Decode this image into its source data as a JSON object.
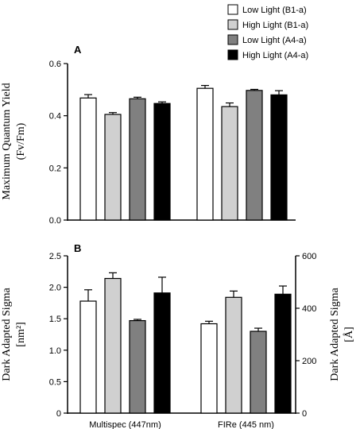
{
  "legend": [
    {
      "label": "Low Light (B1-a)",
      "color": "#ffffff"
    },
    {
      "label": "High Light (B1-a)",
      "color": "#d0d0d0"
    },
    {
      "label": "Low Light (A4-a)",
      "color": "#808080"
    },
    {
      "label": "High Light (A4-a)",
      "color": "#000000"
    }
  ],
  "chart_data": [
    {
      "type": "bar",
      "panel_label": "A",
      "ylabel_line1": "Maximum Quantum Yield",
      "ylabel_line2": "(Fv/Fm)",
      "ylim": [
        0,
        0.6
      ],
      "yticks": [
        "0.0",
        "0.2",
        "0.4",
        "0.6"
      ],
      "groups": [
        "Multispec (447nm)",
        "FIRe (445 nm)"
      ],
      "series": [
        {
          "name": "Low Light (B1-a)",
          "values": [
            0.468,
            0.505
          ],
          "errors": [
            0.013,
            0.011
          ]
        },
        {
          "name": "High Light (B1-a)",
          "values": [
            0.405,
            0.435
          ],
          "errors": [
            0.007,
            0.014
          ]
        },
        {
          "name": "Low Light (A4-a)",
          "values": [
            0.465,
            0.497
          ],
          "errors": [
            0.006,
            0.004
          ]
        },
        {
          "name": "High Light (A4-a)",
          "values": [
            0.447,
            0.48
          ],
          "errors": [
            0.006,
            0.016
          ]
        }
      ]
    },
    {
      "type": "bar",
      "panel_label": "B",
      "ylabel_left_line1": "Dark Adapted Sigma",
      "ylabel_left_line2": "[nm²]",
      "ylabel_right_line1": "Dark Adapted Sigma",
      "ylabel_right_line2": "[Å]",
      "ylim": [
        0,
        2.5
      ],
      "yticks": [
        "0",
        "0.5",
        "1.0",
        "1.5",
        "2.0",
        "2.5"
      ],
      "right_ylim": [
        0,
        600
      ],
      "right_yticks": [
        "0",
        "200",
        "400",
        "600"
      ],
      "groups": [
        "Multispec (447nm)",
        "FIRe (445 nm)"
      ],
      "series": [
        {
          "name": "Low Light (B1-a)",
          "values": [
            1.78,
            1.42
          ],
          "errors": [
            0.18,
            0.04
          ]
        },
        {
          "name": "High Light (B1-a)",
          "values": [
            2.14,
            1.84
          ],
          "errors": [
            0.09,
            0.1
          ]
        },
        {
          "name": "Low Light (A4-a)",
          "values": [
            1.47,
            1.3
          ],
          "errors": [
            0.02,
            0.05
          ]
        },
        {
          "name": "High Light (A4-a)",
          "values": [
            1.91,
            1.89
          ],
          "errors": [
            0.25,
            0.13
          ]
        }
      ]
    }
  ]
}
